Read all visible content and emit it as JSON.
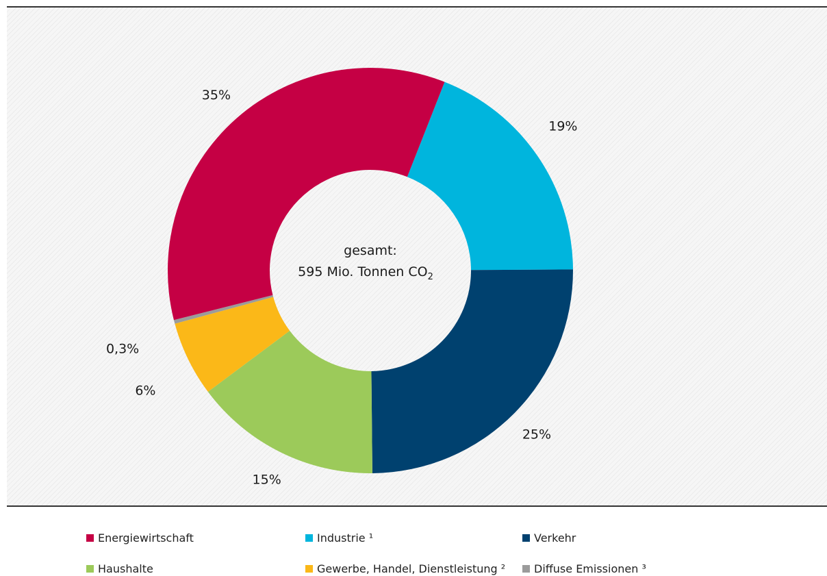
{
  "chart_data": {
    "type": "pie",
    "center_label": {
      "line1": "gesamt:",
      "line2_prefix": "595 Mio. Tonnen CO",
      "line2_sub": "2"
    },
    "segments": [
      {
        "name": "Industrie ¹",
        "label": "19%",
        "value": 19,
        "color": "#00b5dd"
      },
      {
        "name": "Verkehr",
        "label": "25%",
        "value": 25,
        "color": "#00416f"
      },
      {
        "name": "Haushalte",
        "label": "15%",
        "value": 15,
        "color": "#9cca5a"
      },
      {
        "name": "Gewerbe, Handel, Dienstleistung ²",
        "label": "6%",
        "value": 6,
        "color": "#fbb818"
      },
      {
        "name": "Diffuse Emissionen ³",
        "label": "0,3%",
        "value": 0.3,
        "color": "#9b9b9b"
      },
      {
        "name": "Energiewirtschaft",
        "label": "35%",
        "value": 35,
        "color": "#c50044"
      }
    ],
    "legend": [
      {
        "label": "Energiewirtschaft",
        "color": "#c50044"
      },
      {
        "label": "Industrie ¹",
        "color": "#00b5dd"
      },
      {
        "label": "Verkehr",
        "color": "#00416f"
      },
      {
        "label": "Haushalte",
        "color": "#9cca5a"
      },
      {
        "label": "Gewerbe, Handel, Dienstleistung ²",
        "color": "#fbb818"
      },
      {
        "label": "Diffuse Emissionen ³",
        "color": "#9b9b9b"
      }
    ],
    "legend_placement": "bottom"
  }
}
